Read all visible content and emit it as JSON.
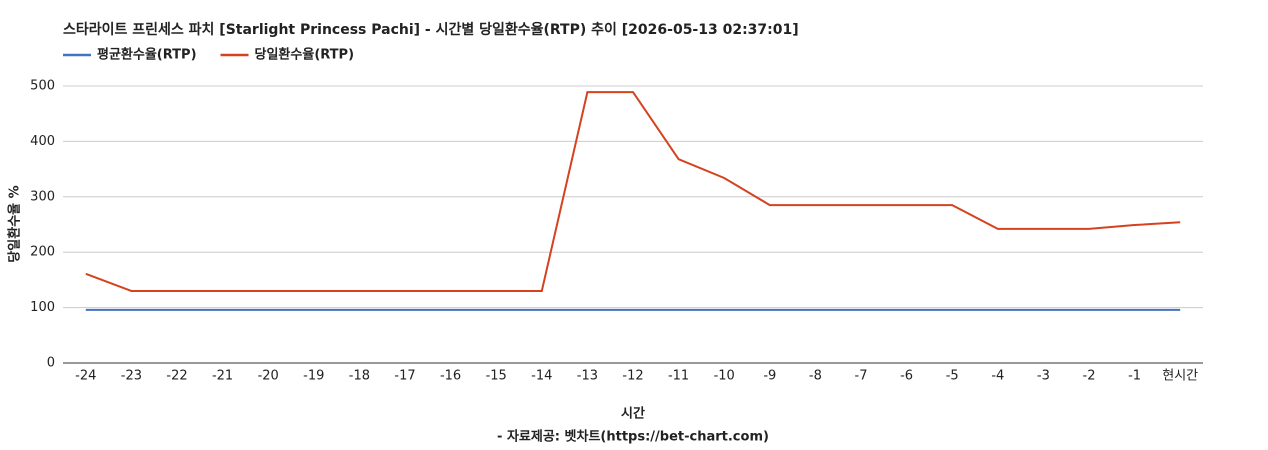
{
  "chart_data": {
    "type": "line",
    "title": "스타라이트 프린세스 파치 [Starlight Princess Pachi] - 시간별 당일환수율(RTP) 추이 [2026-05-13 02:37:01]",
    "x_label": "시간",
    "y_label": "당일환수율 %",
    "footer": "- 자료제공: 벳차트(https://bet-chart.com)",
    "categories": [
      "-24",
      "-23",
      "-22",
      "-21",
      "-20",
      "-19",
      "-18",
      "-17",
      "-16",
      "-15",
      "-14",
      "-13",
      "-12",
      "-11",
      "-10",
      "-9",
      "-8",
      "-7",
      "-6",
      "-5",
      "-4",
      "-3",
      "-2",
      "-1",
      "현시간"
    ],
    "series": [
      {
        "name": "평균환수율(RTP)",
        "color": "#4472c4",
        "values": [
          96,
          96,
          96,
          96,
          96,
          96,
          96,
          96,
          96,
          96,
          96,
          96,
          96,
          96,
          96,
          96,
          96,
          96,
          96,
          96,
          96,
          96,
          96,
          96,
          96
        ]
      },
      {
        "name": "당일환수율(RTP)",
        "color": "#d4421e",
        "values": [
          161,
          130,
          130,
          130,
          130,
          130,
          130,
          130,
          130,
          130,
          130,
          489,
          489,
          368,
          334,
          285,
          285,
          285,
          285,
          285,
          242,
          242,
          242,
          249,
          254
        ]
      }
    ],
    "ylim": [
      0,
      500
    ],
    "yticks": [
      0,
      100,
      200,
      300,
      400,
      500
    ],
    "grid": true,
    "legend": "top-left"
  }
}
